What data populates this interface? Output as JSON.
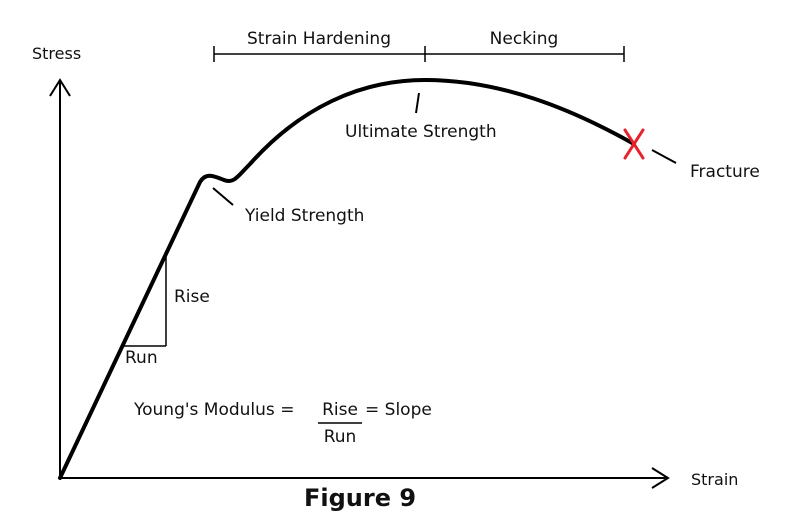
{
  "axes": {
    "y_label": "Stress",
    "x_label": "Strain"
  },
  "regions": {
    "strain_hardening": "Strain Hardening",
    "necking": "Necking"
  },
  "points": {
    "ultimate_strength": "Ultimate Strength",
    "yield_strength": "Yield Strength",
    "fracture": "Fracture"
  },
  "slope_triangle": {
    "rise": "Rise",
    "run": "Run"
  },
  "formula": {
    "lhs": "Young's Modulus =",
    "numerator": "Rise",
    "rhs": "= Slope",
    "denominator": "Run"
  },
  "caption": "Figure 9",
  "colors": {
    "curve": "#000000",
    "fracture_marker": "#e8202a"
  },
  "icons": {
    "fracture_marker": "x-mark-icon"
  }
}
